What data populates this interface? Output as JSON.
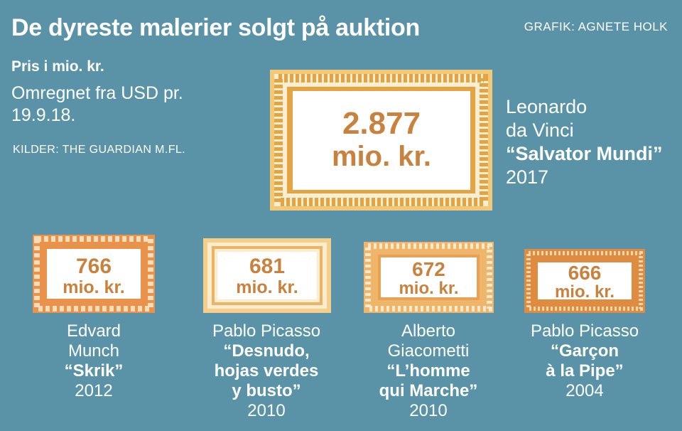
{
  "header": {
    "title": "De dyreste malerier solgt på auktion",
    "credit": "GRAFIK: AGNETE HOLK",
    "unit_label": "Pris i mio. kr.",
    "conversion_note": "Omregnet fra USD pr. 19.9.18.",
    "source": "KILDER: THE GUARDIAN M.FL."
  },
  "chart_data": {
    "type": "table",
    "unit": "mio. kr.",
    "paintings": [
      {
        "price": "2.877",
        "value": 2877,
        "artist_line1": "Leonardo",
        "artist_line2": "da Vinci",
        "work": "“Salvator Mundi”",
        "year": "2017"
      },
      {
        "price": "766",
        "value": 766,
        "artist_line1": "Edvard",
        "artist_line2": "Munch",
        "work": "“Skrik”",
        "year": "2012"
      },
      {
        "price": "681",
        "value": 681,
        "artist_line1": "Pablo Picasso",
        "artist_line2": "",
        "work_line1": "“Desnudo,",
        "work_line2": "hojas verdes",
        "work_line3": "y busto”",
        "year": "2010"
      },
      {
        "price": "672",
        "value": 672,
        "artist_line1": "Alberto",
        "artist_line2": "Giacometti",
        "work_line1": "“L’homme",
        "work_line2": "qui Marche”",
        "year": "2010"
      },
      {
        "price": "666",
        "value": 666,
        "artist_line1": "Pablo Picasso",
        "artist_line2": "",
        "work_line1": "“Garçon",
        "work_line2": "à la Pipe”",
        "year": "2004"
      }
    ]
  },
  "colors": {
    "background": "#5a93a7",
    "frame_gold": "#e8b04a",
    "frame_orange": "#e99a52",
    "frame_light": "#f5cf8a",
    "value_text": "#c8823d"
  }
}
